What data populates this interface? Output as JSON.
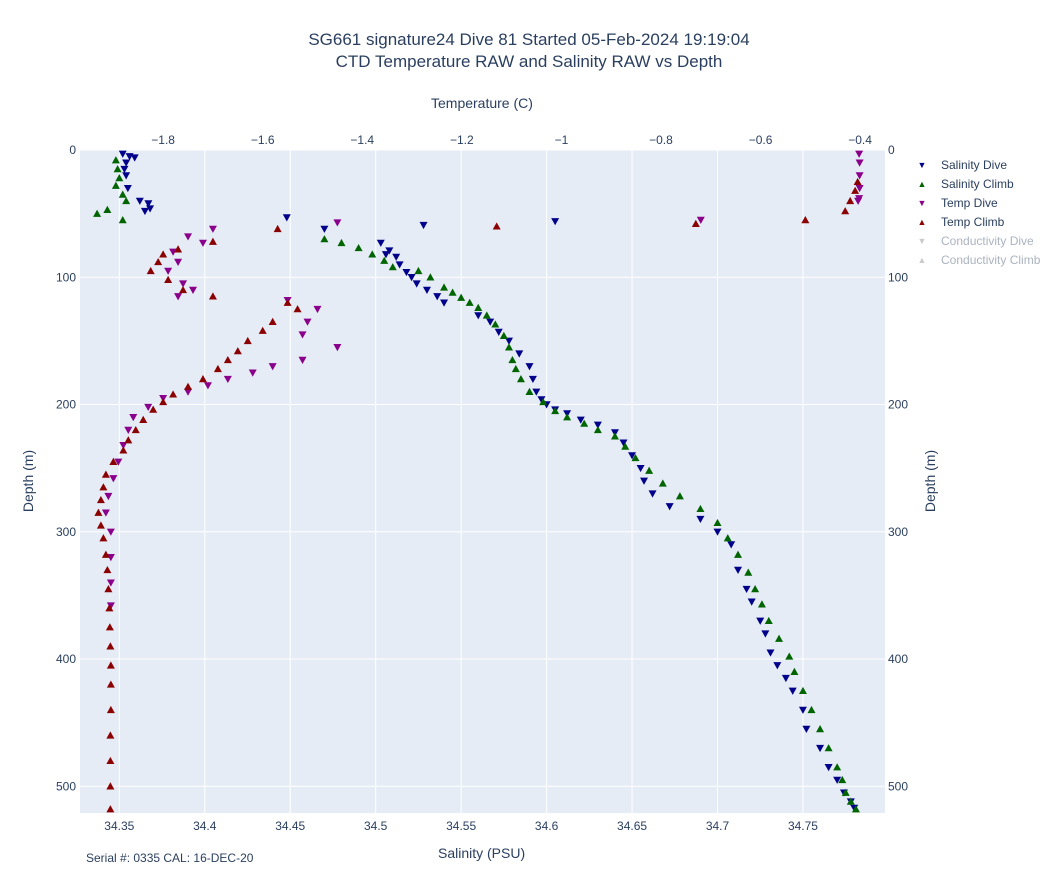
{
  "title": {
    "line1": "SG661 signature24 Dive 81 Started 05-Feb-2024 19:19:04",
    "line2": "CTD Temperature RAW and Salinity RAW vs Depth"
  },
  "footnote": "Serial #: 0335  CAL: 16-DEC-20",
  "chart_data": {
    "type": "scatter",
    "title": "SG661 signature24 Dive 81 Started 05-Feb-2024 19:19:04 / CTD Temperature RAW and Salinity RAW vs Depth",
    "xlabel": "Salinity (PSU)",
    "x2label": "Temperature (C)",
    "ylabel": "Depth (m)",
    "y2label": "Depth (m)",
    "xlim": [
      34.327,
      34.798
    ],
    "x2lim": [
      -1.967,
      -0.35
    ],
    "ylim": [
      521,
      0
    ],
    "y_reversed": true,
    "grid": true,
    "legend_position": "right",
    "x_ticks": [
      34.35,
      34.4,
      34.45,
      34.5,
      34.55,
      34.6,
      34.65,
      34.7,
      34.75
    ],
    "x_tick_labels": [
      "34.35",
      "34.4",
      "34.45",
      "34.5",
      "34.55",
      "34.6",
      "34.65",
      "34.7",
      "34.75"
    ],
    "x2_ticks": [
      -1.8,
      -1.6,
      -1.4,
      -1.2,
      -1.0,
      -0.8,
      -0.6,
      -0.4
    ],
    "x2_tick_labels": [
      "−1.8",
      "−1.6",
      "−1.4",
      "−1.2",
      "−1",
      "−0.8",
      "−0.6",
      "−0.4"
    ],
    "y_ticks": [
      0,
      100,
      200,
      300,
      400,
      500
    ],
    "y_tick_labels": [
      "0",
      "100",
      "200",
      "300",
      "400",
      "500"
    ],
    "y2_tick_labels": [
      "0",
      "100",
      "200",
      "300",
      "400",
      "500"
    ],
    "series": [
      {
        "name": "Salinity Dive",
        "axis": "salinity",
        "marker": "triangle-down",
        "color": "#00008b",
        "visible": true,
        "points": [
          [
            34.352,
            3
          ],
          [
            34.356,
            5
          ],
          [
            34.359,
            6
          ],
          [
            34.354,
            10
          ],
          [
            34.353,
            15
          ],
          [
            34.354,
            20
          ],
          [
            34.355,
            30
          ],
          [
            34.362,
            40
          ],
          [
            34.367,
            42
          ],
          [
            34.368,
            46
          ],
          [
            34.365,
            48
          ],
          [
            34.448,
            53
          ],
          [
            34.47,
            62
          ],
          [
            34.528,
            59
          ],
          [
            34.605,
            56
          ],
          [
            34.503,
            73
          ],
          [
            34.508,
            79
          ],
          [
            34.506,
            82
          ],
          [
            34.512,
            84
          ],
          [
            34.514,
            90
          ],
          [
            34.518,
            96
          ],
          [
            34.521,
            100
          ],
          [
            34.524,
            105
          ],
          [
            34.53,
            110
          ],
          [
            34.536,
            115
          ],
          [
            34.54,
            120
          ],
          [
            34.56,
            130
          ],
          [
            34.567,
            135
          ],
          [
            34.572,
            143
          ],
          [
            34.578,
            150
          ],
          [
            34.584,
            160
          ],
          [
            34.59,
            170
          ],
          [
            34.592,
            180
          ],
          [
            34.594,
            190
          ],
          [
            34.597,
            196
          ],
          [
            34.6,
            200
          ],
          [
            34.605,
            204
          ],
          [
            34.612,
            207
          ],
          [
            34.62,
            212
          ],
          [
            34.63,
            216
          ],
          [
            34.64,
            222
          ],
          [
            34.645,
            230
          ],
          [
            34.65,
            240
          ],
          [
            34.655,
            250
          ],
          [
            34.657,
            260
          ],
          [
            34.662,
            270
          ],
          [
            34.672,
            280
          ],
          [
            34.69,
            290
          ],
          [
            34.7,
            300
          ],
          [
            34.708,
            310
          ],
          [
            34.712,
            330
          ],
          [
            34.717,
            345
          ],
          [
            34.72,
            355
          ],
          [
            34.725,
            370
          ],
          [
            34.728,
            380
          ],
          [
            34.731,
            395
          ],
          [
            34.735,
            405
          ],
          [
            34.74,
            415
          ],
          [
            34.744,
            425
          ],
          [
            34.75,
            440
          ],
          [
            34.752,
            455
          ],
          [
            34.76,
            470
          ],
          [
            34.765,
            485
          ],
          [
            34.77,
            495
          ],
          [
            34.774,
            505
          ],
          [
            34.778,
            512
          ],
          [
            34.78,
            517
          ]
        ]
      },
      {
        "name": "Salinity Climb",
        "axis": "salinity",
        "marker": "triangle-up",
        "color": "#006400",
        "visible": true,
        "points": [
          [
            34.348,
            8
          ],
          [
            34.349,
            15
          ],
          [
            34.35,
            22
          ],
          [
            34.348,
            28
          ],
          [
            34.352,
            35
          ],
          [
            34.354,
            40
          ],
          [
            34.343,
            47
          ],
          [
            34.337,
            50
          ],
          [
            34.352,
            55
          ],
          [
            34.47,
            70
          ],
          [
            34.48,
            73
          ],
          [
            34.49,
            77
          ],
          [
            34.498,
            82
          ],
          [
            34.505,
            87
          ],
          [
            34.51,
            92
          ],
          [
            34.525,
            95
          ],
          [
            34.532,
            100
          ],
          [
            34.54,
            108
          ],
          [
            34.545,
            112
          ],
          [
            34.55,
            116
          ],
          [
            34.555,
            120
          ],
          [
            34.56,
            124
          ],
          [
            34.565,
            130
          ],
          [
            34.57,
            137
          ],
          [
            34.575,
            146
          ],
          [
            34.578,
            155
          ],
          [
            34.58,
            165
          ],
          [
            34.582,
            172
          ],
          [
            34.585,
            180
          ],
          [
            34.59,
            190
          ],
          [
            34.598,
            198
          ],
          [
            34.605,
            205
          ],
          [
            34.612,
            210
          ],
          [
            34.622,
            215
          ],
          [
            34.63,
            220
          ],
          [
            34.64,
            225
          ],
          [
            34.646,
            233
          ],
          [
            34.652,
            242
          ],
          [
            34.66,
            252
          ],
          [
            34.668,
            262
          ],
          [
            34.678,
            272
          ],
          [
            34.69,
            282
          ],
          [
            34.7,
            293
          ],
          [
            34.706,
            305
          ],
          [
            34.712,
            318
          ],
          [
            34.718,
            332
          ],
          [
            34.722,
            345
          ],
          [
            34.726,
            357
          ],
          [
            34.73,
            370
          ],
          [
            34.736,
            384
          ],
          [
            34.742,
            398
          ],
          [
            34.745,
            410
          ],
          [
            34.75,
            425
          ],
          [
            34.755,
            440
          ],
          [
            34.76,
            455
          ],
          [
            34.765,
            470
          ],
          [
            34.77,
            485
          ],
          [
            34.773,
            495
          ],
          [
            34.775,
            505
          ],
          [
            34.778,
            512
          ],
          [
            34.781,
            518
          ]
        ]
      },
      {
        "name": "Temp Dive",
        "axis": "temperature",
        "marker": "triangle-down",
        "color": "#8b008b",
        "visible": true,
        "points": [
          [
            -0.402,
            3
          ],
          [
            -0.401,
            10
          ],
          [
            -0.401,
            20
          ],
          [
            -0.401,
            30
          ],
          [
            -0.402,
            38
          ],
          [
            -0.404,
            40
          ],
          [
            -0.72,
            55
          ],
          [
            -1.45,
            57
          ],
          [
            -1.7,
            62
          ],
          [
            -1.75,
            68
          ],
          [
            -1.72,
            73
          ],
          [
            -1.78,
            80
          ],
          [
            -1.77,
            88
          ],
          [
            -1.79,
            95
          ],
          [
            -1.76,
            105
          ],
          [
            -1.74,
            110
          ],
          [
            -1.77,
            115
          ],
          [
            -1.55,
            118
          ],
          [
            -1.49,
            125
          ],
          [
            -1.51,
            135
          ],
          [
            -1.52,
            145
          ],
          [
            -1.45,
            155
          ],
          [
            -1.52,
            165
          ],
          [
            -1.58,
            170
          ],
          [
            -1.62,
            175
          ],
          [
            -1.67,
            180
          ],
          [
            -1.71,
            185
          ],
          [
            -1.75,
            190
          ],
          [
            -1.8,
            195
          ],
          [
            -1.83,
            202
          ],
          [
            -1.86,
            210
          ],
          [
            -1.87,
            220
          ],
          [
            -1.88,
            232
          ],
          [
            -1.89,
            245
          ],
          [
            -1.9,
            258
          ],
          [
            -1.91,
            272
          ],
          [
            -1.915,
            285
          ],
          [
            -1.905,
            300
          ],
          [
            -1.905,
            320
          ],
          [
            -1.905,
            340
          ],
          [
            -1.905,
            358
          ]
        ]
      },
      {
        "name": "Temp Climb",
        "axis": "temperature",
        "marker": "triangle-up",
        "color": "#8b0000",
        "visible": true,
        "points": [
          [
            -0.405,
            25
          ],
          [
            -0.41,
            32
          ],
          [
            -0.42,
            40
          ],
          [
            -0.43,
            48
          ],
          [
            -0.51,
            55
          ],
          [
            -0.73,
            58
          ],
          [
            -1.13,
            60
          ],
          [
            -1.57,
            62
          ],
          [
            -1.7,
            72
          ],
          [
            -1.77,
            78
          ],
          [
            -1.8,
            82
          ],
          [
            -1.81,
            88
          ],
          [
            -1.825,
            95
          ],
          [
            -1.79,
            102
          ],
          [
            -1.76,
            110
          ],
          [
            -1.7,
            115
          ],
          [
            -1.55,
            120
          ],
          [
            -1.53,
            125
          ],
          [
            -1.58,
            135
          ],
          [
            -1.6,
            142
          ],
          [
            -1.63,
            150
          ],
          [
            -1.65,
            158
          ],
          [
            -1.67,
            165
          ],
          [
            -1.69,
            172
          ],
          [
            -1.72,
            180
          ],
          [
            -1.75,
            186
          ],
          [
            -1.78,
            192
          ],
          [
            -1.8,
            198
          ],
          [
            -1.82,
            204
          ],
          [
            -1.84,
            212
          ],
          [
            -1.855,
            220
          ],
          [
            -1.87,
            228
          ],
          [
            -1.88,
            236
          ],
          [
            -1.9,
            245
          ],
          [
            -1.915,
            255
          ],
          [
            -1.92,
            265
          ],
          [
            -1.925,
            275
          ],
          [
            -1.93,
            285
          ],
          [
            -1.925,
            295
          ],
          [
            -1.92,
            305
          ],
          [
            -1.915,
            318
          ],
          [
            -1.912,
            330
          ],
          [
            -1.91,
            345
          ],
          [
            -1.908,
            360
          ],
          [
            -1.907,
            375
          ],
          [
            -1.906,
            390
          ],
          [
            -1.905,
            405
          ],
          [
            -1.905,
            420
          ],
          [
            -1.905,
            440
          ],
          [
            -1.906,
            460
          ],
          [
            -1.906,
            480
          ],
          [
            -1.906,
            500
          ],
          [
            -1.906,
            518
          ]
        ]
      },
      {
        "name": "Conductivity Dive",
        "axis": "none",
        "marker": "triangle-down",
        "color": "#7f7f7f",
        "visible": false,
        "points": []
      },
      {
        "name": "Conductivity Climb",
        "axis": "none",
        "marker": "triangle-up",
        "color": "#7f7f7f",
        "visible": false,
        "points": []
      }
    ]
  }
}
